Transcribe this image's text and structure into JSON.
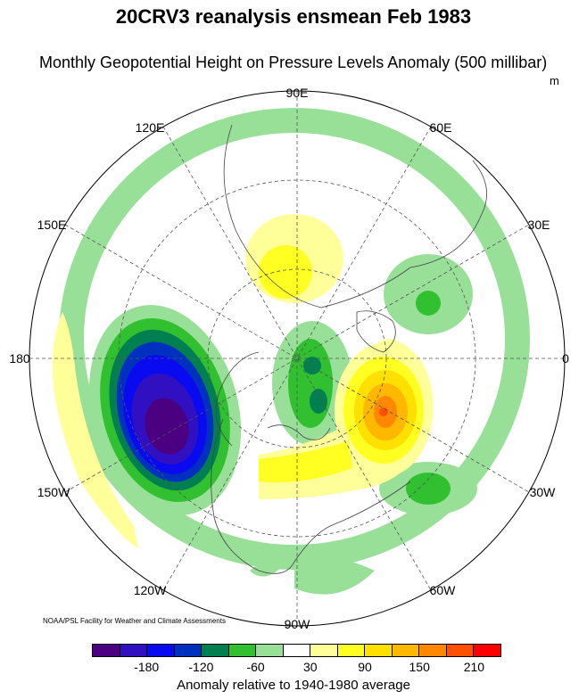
{
  "title": "20CRV3 reanalysis ensmean Feb 1983",
  "subtitle": "Monthly Geopotential Height on Pressure Levels Anomaly (500 millibar)",
  "units": "m",
  "longitude_labels": [
    "90E",
    "60E",
    "30E",
    "0",
    "30W",
    "60W",
    "90W",
    "120W",
    "150W",
    "180",
    "150E",
    "120E"
  ],
  "credit": "NOAA/PSL Facility for Weather and Climate Assessments",
  "colorbar": {
    "colors": [
      "#4b0082",
      "#3010c0",
      "#0a0af0",
      "#0030c0",
      "#008050",
      "#30c030",
      "#98e098",
      "#ffffff",
      "#ffff99",
      "#ffff22",
      "#ffe000",
      "#ffb800",
      "#ff8800",
      "#ff5000",
      "#ff0000"
    ],
    "ticks": [
      "-180",
      "-120",
      "-60",
      "30",
      "90",
      "150",
      "210"
    ],
    "label": "Anomaly relative to 1940-1980 average"
  }
}
